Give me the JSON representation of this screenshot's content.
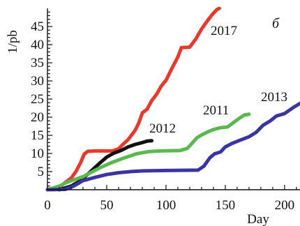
{
  "chart_data": {
    "type": "line",
    "xlabel": "Day",
    "ylabel": "1/pb",
    "panel_label": "б",
    "xlim": [
      0,
      213
    ],
    "ylim": [
      0,
      50
    ],
    "x_ticks": [
      0,
      50,
      100,
      150,
      200
    ],
    "y_ticks": [
      5,
      10,
      15,
      20,
      25,
      30,
      35,
      40,
      45
    ],
    "series": [
      {
        "name": "2017",
        "color": "#e8392b",
        "points": [
          [
            0,
            0
          ],
          [
            10,
            0.6
          ],
          [
            15,
            2
          ],
          [
            20,
            3.2
          ],
          [
            24,
            5
          ],
          [
            28,
            7.5
          ],
          [
            31,
            9.8
          ],
          [
            34,
            10.6
          ],
          [
            40,
            10.7
          ],
          [
            55,
            10.7
          ],
          [
            60,
            11.3
          ],
          [
            63,
            12.3
          ],
          [
            68,
            13.8
          ],
          [
            74,
            16.4
          ],
          [
            77,
            18.4
          ],
          [
            80,
            21.2
          ],
          [
            84,
            22.2
          ],
          [
            88,
            24.6
          ],
          [
            92,
            26.3
          ],
          [
            96,
            28.6
          ],
          [
            100,
            30.2
          ],
          [
            105,
            33.5
          ],
          [
            110,
            36.6
          ],
          [
            113,
            39.2
          ],
          [
            120,
            39.3
          ],
          [
            125,
            41.5
          ],
          [
            130,
            44.3
          ],
          [
            135,
            46.6
          ],
          [
            139,
            48.3
          ],
          [
            143,
            49.7
          ],
          [
            145,
            50
          ]
        ]
      },
      {
        "name": "2012",
        "color": "#111111",
        "points": [
          [
            10,
            0
          ],
          [
            20,
            1
          ],
          [
            28,
            2.5
          ],
          [
            33,
            4
          ],
          [
            38,
            5.5
          ],
          [
            44,
            7.3
          ],
          [
            50,
            9
          ],
          [
            56,
            10.1
          ],
          [
            62,
            10.8
          ],
          [
            68,
            11.8
          ],
          [
            74,
            12.5
          ],
          [
            80,
            13
          ],
          [
            84,
            13.4
          ],
          [
            88,
            13.5
          ]
        ]
      },
      {
        "name": "2011",
        "color": "#5bb850",
        "points": [
          [
            0,
            0
          ],
          [
            10,
            1
          ],
          [
            16,
            2
          ],
          [
            22,
            2.7
          ],
          [
            30,
            3.6
          ],
          [
            38,
            5
          ],
          [
            46,
            6.3
          ],
          [
            55,
            7.6
          ],
          [
            65,
            8.8
          ],
          [
            75,
            9.9
          ],
          [
            85,
            10.5
          ],
          [
            95,
            10.7
          ],
          [
            112,
            10.8
          ],
          [
            118,
            11.4
          ],
          [
            122,
            12.8
          ],
          [
            126,
            14.3
          ],
          [
            130,
            15.1
          ],
          [
            135,
            15.9
          ],
          [
            140,
            16.6
          ],
          [
            146,
            17.1
          ],
          [
            152,
            17.3
          ],
          [
            156,
            18.3
          ],
          [
            161,
            19.5
          ],
          [
            166,
            20.6
          ],
          [
            170,
            20.8
          ]
        ]
      },
      {
        "name": "2013",
        "color": "#3a35a0",
        "points": [
          [
            0,
            0
          ],
          [
            15,
            0.1
          ],
          [
            22,
            1
          ],
          [
            30,
            2.5
          ],
          [
            40,
            3.4
          ],
          [
            50,
            4.2
          ],
          [
            60,
            4.7
          ],
          [
            70,
            5
          ],
          [
            80,
            5.2
          ],
          [
            100,
            5.3
          ],
          [
            127,
            5.4
          ],
          [
            132,
            6.5
          ],
          [
            137,
            8.8
          ],
          [
            141,
            9.9
          ],
          [
            146,
            10.4
          ],
          [
            150,
            11.8
          ],
          [
            156,
            12.8
          ],
          [
            162,
            13.6
          ],
          [
            170,
            14.6
          ],
          [
            176,
            15.8
          ],
          [
            182,
            17.8
          ],
          [
            188,
            19
          ],
          [
            193,
            20.3
          ],
          [
            200,
            21
          ],
          [
            207,
            22.6
          ],
          [
            213,
            23.8
          ]
        ]
      }
    ]
  }
}
